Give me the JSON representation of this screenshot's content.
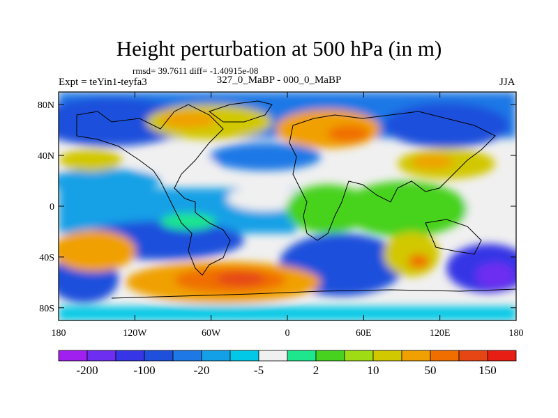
{
  "title": "Height perturbation at 500 hPa (in m)",
  "stats": "rmsd= 39.7611 diff= -1.40915e-08",
  "experiment": "Expt = teYin1-teyfa3",
  "period": "327_0_MaBP - 000_0_MaBP",
  "season": "JJA",
  "map": {
    "type": "contour-fill",
    "projection": "cylindrical-equidistant",
    "lon_range": [
      -180,
      180
    ],
    "lat_range": [
      -90,
      90
    ],
    "x_tick_labels": [
      "180",
      "120W",
      "60W",
      "0",
      "60E",
      "120E",
      "180"
    ],
    "x_tick_values": [
      -180,
      -120,
      -60,
      0,
      60,
      120,
      180
    ],
    "y_tick_labels": [
      "80N",
      "40N",
      "0",
      "40S",
      "80S"
    ],
    "y_tick_values": [
      80,
      40,
      0,
      -40,
      -80
    ],
    "coastlines": "paleogeography"
  },
  "colorbar": {
    "labels": [
      "-200",
      "-100",
      "-20",
      "-5",
      "2",
      "10",
      "50",
      "150"
    ],
    "colors": [
      "#a020f0",
      "#6e2ef2",
      "#3636e6",
      "#1e50dc",
      "#1e78e6",
      "#14a0e6",
      "#00c8e6",
      "#f0f0f0",
      "#1ee68c",
      "#46d21e",
      "#a0dc14",
      "#d2c800",
      "#f0a000",
      "#f06e00",
      "#e64614",
      "#e61e14"
    ]
  }
}
